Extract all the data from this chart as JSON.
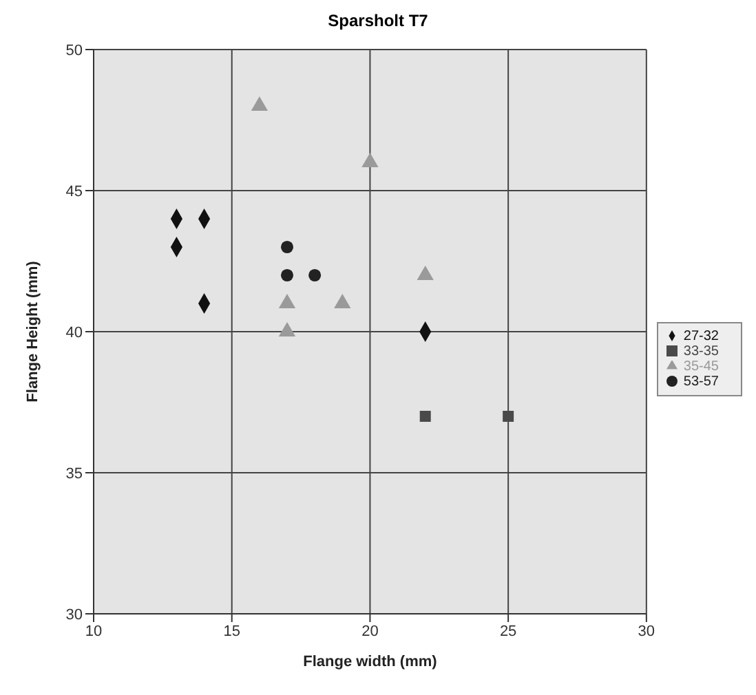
{
  "chart_data": {
    "type": "scatter",
    "title": "Sparsholt T7",
    "xlabel": "Flange width (mm)",
    "ylabel": "Flange Height (mm)",
    "xlim": [
      10,
      30
    ],
    "xticks": [
      10,
      15,
      20,
      25,
      30
    ],
    "ylim": [
      30,
      50
    ],
    "yticks": [
      30,
      35,
      40,
      45,
      50
    ],
    "grid": true,
    "legend": "right",
    "series": [
      {
        "name": "27-32",
        "color": "#111111",
        "marker": "diamond",
        "x": [
          13,
          14,
          13,
          14,
          22
        ],
        "values": [
          44,
          44,
          43,
          41,
          40
        ]
      },
      {
        "name": "33-35",
        "color": "#4a4a4a",
        "marker": "square",
        "x": [
          22,
          25
        ],
        "values": [
          37,
          37
        ]
      },
      {
        "name": "35-45",
        "color": "#9a9a9a",
        "marker": "triangle",
        "x": [
          16,
          20,
          22,
          17,
          19,
          17
        ],
        "values": [
          48,
          46,
          42,
          41,
          41,
          40
        ]
      },
      {
        "name": "53-57",
        "color": "#222222",
        "marker": "circle",
        "x": [
          17,
          17,
          18
        ],
        "values": [
          43,
          42,
          42
        ]
      }
    ]
  }
}
